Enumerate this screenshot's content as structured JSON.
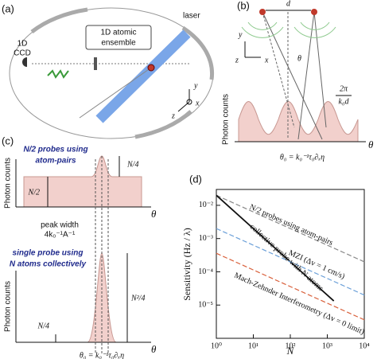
{
  "figure": {
    "a": {
      "label": "(a)",
      "ccd": [
        "1D",
        "CCD"
      ],
      "ensemble": [
        "1D atomic",
        "ensemble"
      ],
      "laser": "laser",
      "axes": [
        "y",
        "z",
        "x"
      ]
    },
    "b": {
      "label": "(b)",
      "d": "d",
      "axes": [
        "y",
        "z",
        "x"
      ],
      "theta": "θ",
      "period": [
        "2π",
        "k₀d"
      ],
      "ylabel": "Photon counts",
      "xlabel": "θ",
      "theta0": "θ₀ = k₀⁻¹τ₀∂ₓη"
    },
    "c": {
      "label": "(c)",
      "top_title": [
        "N/2 probes using",
        "atom-pairs"
      ],
      "n4_top": "N/4",
      "n2": "N/2",
      "ylabel_top": "Photon counts",
      "xlabel_top": "θ",
      "peak_width": [
        "peak width",
        "4k₀⁻¹A⁻¹"
      ],
      "bottom_title": [
        "single probe using",
        "N atoms collectively"
      ],
      "n24": "N²/4",
      "n4_bottom": "N/4",
      "ylabel_bottom": "Photon counts",
      "xlabel_bottom": "θ",
      "theta0": "θ₀ = k₀⁻¹τ₀∂ₓη"
    }
  },
  "chart_data": {
    "type": "line",
    "label": "(d)",
    "xlabel": "N",
    "ylabel": "Sensitivity (Hz / λ)",
    "xlog": true,
    "ylog": true,
    "xlim": [
      1,
      10000
    ],
    "ylim": [
      1e-06,
      0.03
    ],
    "xticks": [
      {
        "value": 1,
        "label": "10⁰"
      },
      {
        "value": 10,
        "label": "10¹"
      },
      {
        "value": 100,
        "label": "10²"
      },
      {
        "value": 1000,
        "label": "10³"
      },
      {
        "value": 10000,
        "label": "10⁴"
      }
    ],
    "yticks": [
      {
        "value": 0.01,
        "label": "10⁻²"
      },
      {
        "value": 0.001,
        "label": "10⁻³"
      },
      {
        "value": 0.0001,
        "label": "10⁻⁴"
      },
      {
        "value": 1e-05,
        "label": "10⁻⁵"
      }
    ],
    "series": [
      {
        "color": "#888888",
        "dash": true,
        "x": [
          1,
          10000
        ],
        "values": [
          0.02,
          0.0002
        ]
      },
      {
        "color": "#111111",
        "dash": false,
        "x": [
          1,
          1500
        ],
        "values": [
          0.02,
          1.33e-05
        ]
      },
      {
        "color": "#6a9fd8",
        "dash": true,
        "x": [
          1,
          10000
        ],
        "values": [
          0.002,
          2e-05
        ]
      },
      {
        "color": "#d9603b",
        "dash": true,
        "x": [
          1,
          10000
        ],
        "values": [
          0.00036,
          3.6e-06
        ]
      }
    ],
    "annotations": [
      {
        "text": "N/2 probes using atom-pairs",
        "color": "#333333"
      },
      {
        "text": "collective probe with N atoms",
        "color": "#111111"
      },
      {
        "text": "MZI (Δv = 1 cm/s)",
        "color": "#3f6fb5"
      },
      {
        "text": "Mach-Zehnder Interferometry (Δv = 0 limit)",
        "color": "#c9472a"
      }
    ]
  }
}
